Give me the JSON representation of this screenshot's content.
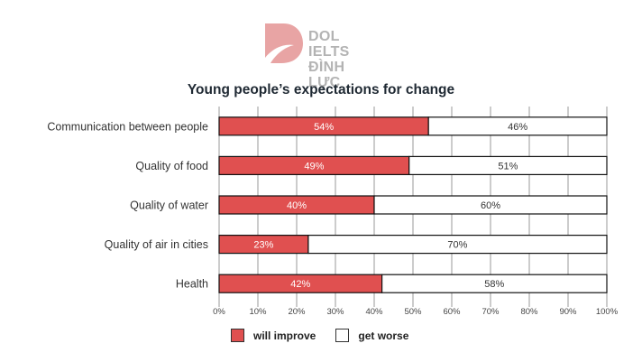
{
  "brand": {
    "line1": "DOL IELTS",
    "line2": "ĐÌNH LỰC",
    "logo_color": "#e8a4a4",
    "text_color": "#b3b3b3"
  },
  "chart_data": {
    "type": "bar",
    "orientation": "horizontal",
    "stacked": true,
    "title": "Young people’s expectations for change",
    "xlabel": "",
    "ylabel": "",
    "xlim": [
      0,
      100
    ],
    "x_ticks": [
      "0%",
      "10%",
      "20%",
      "30%",
      "40%",
      "50%",
      "60%",
      "70%",
      "80%",
      "90%",
      "100%"
    ],
    "grid": true,
    "legend_position": "bottom-left",
    "categories": [
      "Communication between people",
      "Quality of food",
      "Quality of water",
      "Quality of air in cities",
      "Health"
    ],
    "series": [
      {
        "name": "will improve",
        "color": "#e05050",
        "values": [
          54,
          49,
          40,
          23,
          42
        ],
        "labels": [
          "54%",
          "49%",
          "40%",
          "23%",
          "42%"
        ]
      },
      {
        "name": "get worse",
        "color": "#ffffff",
        "values": [
          46,
          51,
          60,
          70,
          58
        ],
        "labels": [
          "46%",
          "51%",
          "60%",
          "70%",
          "58%"
        ]
      }
    ]
  },
  "legend": {
    "items": [
      {
        "label": "will improve",
        "color": "#e05050"
      },
      {
        "label": "get worse",
        "color": "#ffffff"
      }
    ]
  }
}
